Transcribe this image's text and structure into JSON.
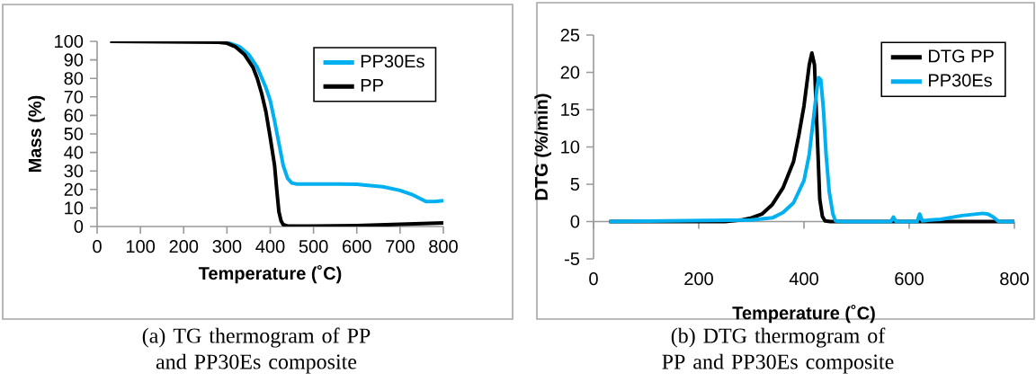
{
  "chart_data": [
    {
      "type": "line",
      "xlabel": "Temperature (˚C)",
      "ylabel": "Mass (%)",
      "xlim": [
        0,
        800
      ],
      "ylim": [
        0,
        100
      ],
      "xticks": [
        0,
        100,
        200,
        300,
        400,
        500,
        600,
        700,
        800
      ],
      "yticks": [
        0,
        10,
        20,
        30,
        40,
        50,
        60,
        70,
        80,
        90,
        100
      ],
      "legend": "top right",
      "line_style": "solid",
      "annotations": [
        "(a) TG thermogram of PP and PP30Es composite"
      ],
      "series": [
        {
          "name": "PP30Es",
          "color": "#00b0f0",
          "x": [
            300,
            330,
            350,
            370,
            390,
            400,
            410,
            420,
            430,
            440,
            450,
            460,
            500,
            560,
            600,
            620,
            660,
            700,
            730,
            760,
            780,
            800
          ],
          "values": [
            99.5,
            97,
            93,
            86,
            75,
            68,
            57,
            45,
            33,
            26,
            23.5,
            23,
            23,
            23,
            22.8,
            22.3,
            21.5,
            19.5,
            17,
            13.5,
            13.5,
            14
          ]
        },
        {
          "name": "PP",
          "color": "#000000",
          "x": [
            30,
            280,
            300,
            320,
            340,
            360,
            370,
            380,
            390,
            400,
            410,
            415,
            420,
            425,
            430,
            440,
            500,
            600,
            700,
            800
          ],
          "values": [
            100,
            99.5,
            99,
            97,
            93,
            86,
            80,
            72,
            62,
            48,
            33,
            20,
            8,
            3,
            1,
            0.3,
            0.3,
            0.5,
            1.2,
            2
          ]
        }
      ]
    },
    {
      "type": "line",
      "xlabel": "Temperature (˚C)",
      "ylabel": "DTG (%/min)",
      "xlim": [
        0,
        800
      ],
      "ylim": [
        -5,
        25
      ],
      "xticks": [
        0,
        200,
        400,
        600,
        800
      ],
      "yticks": [
        -5,
        0,
        5,
        10,
        15,
        20,
        25
      ],
      "legend": "top right",
      "line_style": "solid",
      "annotations": [
        "(b) DTG thermogram of PP and PP30Es composite"
      ],
      "series": [
        {
          "name": "DTG PP",
          "color": "#000000",
          "x": [
            30,
            250,
            280,
            300,
            320,
            340,
            360,
            380,
            390,
            400,
            410,
            415,
            420,
            425,
            430,
            435,
            440,
            450,
            750,
            800
          ],
          "values": [
            0,
            0,
            0.2,
            0.5,
            1,
            2.3,
            4.5,
            8,
            11.5,
            15.5,
            21,
            22.6,
            21,
            12,
            3,
            0.7,
            0.1,
            0,
            0,
            0
          ]
        },
        {
          "name": "PP30Es",
          "color": "#00b0f0",
          "x": [
            30,
            300,
            340,
            360,
            380,
            400,
            410,
            420,
            425,
            428,
            432,
            437,
            442,
            448,
            455,
            460,
            470,
            565,
            570,
            575,
            615,
            620,
            625,
            640,
            660,
            700,
            740,
            750,
            760,
            770,
            800
          ],
          "values": [
            0,
            0.2,
            0.5,
            1.2,
            2.5,
            5.5,
            9,
            15,
            18,
            19.3,
            19,
            15,
            9,
            4,
            1,
            0.1,
            0,
            0,
            0.6,
            0,
            0,
            1,
            0.1,
            0.2,
            0.3,
            0.8,
            1.1,
            1,
            0.6,
            0,
            0
          ]
        }
      ]
    }
  ]
}
